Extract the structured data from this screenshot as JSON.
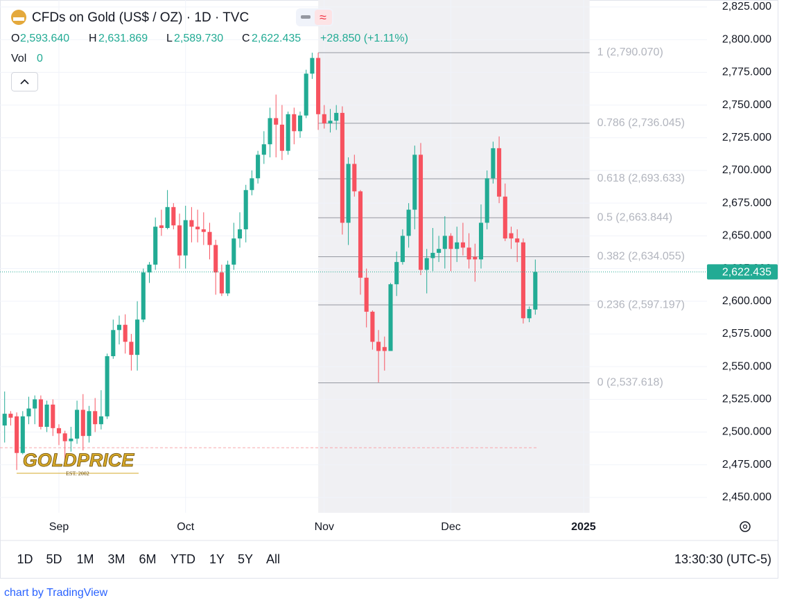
{
  "chart_data": {
    "type": "candlestick",
    "title": "CFDs on Gold (US$ / OZ) · 1D · TVC",
    "legend": {
      "o": "O",
      "open": "2,593.640",
      "h": "H",
      "high": "2,631.869",
      "l": "L",
      "low": "2,589.730",
      "c": "C",
      "close": "2,622.435",
      "change": "+28.850 (+1.11%)",
      "vol": "Vol",
      "vol_value": "0"
    },
    "up_color": "#22ab94",
    "down_color": "#f7525f",
    "open": [
      2505,
      2514,
      2512,
      2484,
      2512,
      2518,
      2525,
      2504,
      2521,
      2503,
      2499,
      2493,
      2495,
      2517,
      2497,
      2516,
      2506,
      2512,
      2558,
      2578,
      2582,
      2569,
      2559,
      2586,
      2622,
      2628,
      2658,
      2656,
      2672,
      2658,
      2635,
      2662,
      2657,
      2655,
      2653,
      2643,
      2622,
      2606,
      2628,
      2648,
      2655,
      2685,
      2694,
      2712,
      2720,
      2740,
      2735,
      2715,
      2743,
      2730,
      2742,
      2774,
      2786,
      2743,
      2736,
      2738,
      2744,
      2660,
      2705,
      2684,
      2618,
      2592,
      2569,
      2565,
      2562,
      2613,
      2630,
      2650,
      2670,
      2712,
      2624,
      2633,
      2637,
      2640,
      2650,
      2640,
      2645,
      2641,
      2634,
      2632,
      2660,
      2694,
      2717,
      2680,
      2652,
      2648,
      2645,
      2587,
      2593.64
    ],
    "high": [
      2531,
      2516,
      2515,
      2516,
      2527,
      2528,
      2528,
      2524,
      2525,
      2506,
      2501,
      2504,
      2524,
      2529,
      2520,
      2526,
      2532,
      2560,
      2586,
      2589,
      2590,
      2575,
      2600,
      2625,
      2630,
      2664,
      2670,
      2685,
      2675,
      2667,
      2673,
      2672,
      2670,
      2668,
      2660,
      2647,
      2628,
      2631,
      2660,
      2668,
      2689,
      2700,
      2715,
      2730,
      2748,
      2758,
      2750,
      2745,
      2748,
      2745,
      2777,
      2790,
      2790,
      2750,
      2747,
      2750,
      2749,
      2710,
      2712,
      2685,
      2625,
      2593,
      2578,
      2573,
      2614,
      2638,
      2655,
      2675,
      2719,
      2721,
      2640,
      2656,
      2650,
      2665,
      2652,
      2657,
      2660,
      2652,
      2644,
      2674,
      2700,
      2722,
      2726,
      2690,
      2657,
      2655,
      2648,
      2596,
      2631.869
    ],
    "low": [
      2492,
      2505,
      2471,
      2483,
      2506,
      2506,
      2502,
      2500,
      2497,
      2490,
      2478,
      2485,
      2491,
      2486,
      2492,
      2500,
      2502,
      2510,
      2556,
      2567,
      2560,
      2547,
      2547,
      2584,
      2614,
      2624,
      2650,
      2655,
      2655,
      2625,
      2625,
      2645,
      2645,
      2643,
      2632,
      2605,
      2604,
      2604,
      2624,
      2641,
      2645,
      2681,
      2690,
      2705,
      2710,
      2710,
      2708,
      2712,
      2720,
      2725,
      2740,
      2770,
      2731,
      2732,
      2729,
      2731,
      2651,
      2643,
      2680,
      2605,
      2580,
      2563,
      2538,
      2547,
      2562,
      2604,
      2628,
      2641,
      2655,
      2620,
      2606,
      2623,
      2630,
      2625,
      2623,
      2630,
      2635,
      2625,
      2615,
      2625,
      2655,
      2690,
      2675,
      2646,
      2640,
      2630,
      2583,
      2584,
      2589.73
    ],
    "close": [
      2514,
      2511,
      2484,
      2512,
      2518,
      2525,
      2504,
      2521,
      2503,
      2499,
      2493,
      2495,
      2517,
      2497,
      2516,
      2506,
      2512,
      2558,
      2578,
      2582,
      2569,
      2559,
      2586,
      2622,
      2628,
      2657,
      2656,
      2672,
      2658,
      2635,
      2662,
      2657,
      2655,
      2653,
      2643,
      2622,
      2606,
      2628,
      2648,
      2655,
      2685,
      2694,
      2712,
      2720,
      2740,
      2735,
      2715,
      2743,
      2730,
      2742,
      2774,
      2786,
      2743,
      2736,
      2738,
      2744,
      2660,
      2705,
      2684,
      2618,
      2592,
      2569,
      2562,
      2562,
      2613,
      2630,
      2650,
      2670,
      2712,
      2624,
      2633,
      2637,
      2640,
      2650,
      2640,
      2645,
      2641,
      2632,
      2632,
      2660,
      2694,
      2717,
      2680,
      2648,
      2648,
      2645,
      2587,
      2594,
      2622.435
    ],
    "ylim": [
      2438.3,
      2830.3
    ],
    "yticks": [
      {
        "value": 2450,
        "label": "2,450.000"
      },
      {
        "value": 2475,
        "label": "2,475.000"
      },
      {
        "value": 2500,
        "label": "2,500.000"
      },
      {
        "value": 2525,
        "label": "2,525.000"
      },
      {
        "value": 2550,
        "label": "2,550.000"
      },
      {
        "value": 2575,
        "label": "2,575.000"
      },
      {
        "value": 2600,
        "label": "2,600.000"
      },
      {
        "value": 2625,
        "label": "2,625.000"
      },
      {
        "value": 2650,
        "label": "2,650.000"
      },
      {
        "value": 2675,
        "label": "2,675.000"
      },
      {
        "value": 2700,
        "label": "2,700.000"
      },
      {
        "value": 2725,
        "label": "2,725.000"
      },
      {
        "value": 2750,
        "label": "2,750.000"
      },
      {
        "value": 2775,
        "label": "2,775.000"
      },
      {
        "value": 2800,
        "label": "2,800.000"
      },
      {
        "value": 2825,
        "label": "2,825.000"
      }
    ],
    "xlim": [
      -0.77,
      116.47
    ],
    "xticks": [
      {
        "value": 9,
        "label": "Sep"
      },
      {
        "value": 30,
        "label": "Oct"
      },
      {
        "value": 53,
        "label": "Nov"
      },
      {
        "value": 74,
        "label": "Dec"
      },
      {
        "value": 96,
        "label": "2025"
      }
    ],
    "grid": true,
    "last_price": {
      "value": 2622.435,
      "label": "2,622.435"
    },
    "dashed_line": 2488,
    "fib_range": [
      52,
      97
    ],
    "fib_levels": [
      {
        "value": 2790.07,
        "label": "1 (2,790.070)"
      },
      {
        "value": 2736.045,
        "label": "0.786 (2,736.045)"
      },
      {
        "value": 2693.633,
        "label": "0.618 (2,693.633)"
      },
      {
        "value": 2663.844,
        "label": "0.5 (2,663.844)"
      },
      {
        "value": 2634.055,
        "label": "0.382 (2,634.055)"
      },
      {
        "value": 2597.197,
        "label": "0.236 (2,597.197)"
      },
      {
        "value": 2537.618,
        "label": "0 (2,537.618)"
      }
    ]
  },
  "logo": {
    "name": "GOLDPRICE",
    "est": "EST. 2002"
  },
  "toolbar": {
    "ranges": [
      "1D",
      "5D",
      "1M",
      "3M",
      "6M",
      "YTD",
      "1Y",
      "5Y",
      "All"
    ],
    "time": "13:30:30 (UTC-5)"
  },
  "footer": "chart by TradingView"
}
